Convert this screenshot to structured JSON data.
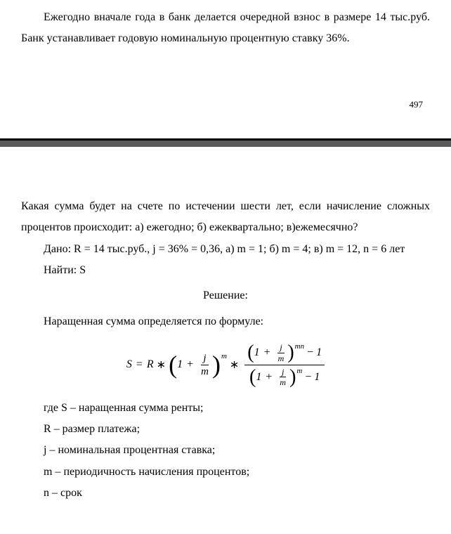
{
  "top": {
    "p1": "Ежегодно вначале года в банк делается очередной взнос в размере 14 тыс.руб. Банк устанавливает годовую номинальную процентную ставку 36%.",
    "pageNum": "497"
  },
  "bottom": {
    "p1": "Какая сумма будет на счете по истечении шести лет, если начисление сложных процентов происходит: а) ежегодно; б) ежеквартально; в)ежемесячно?",
    "p2": "Дано: R = 14 тыс.руб.,  j = 36% = 0,36, а) m = 1; б) m = 4; в) m = 12, n = 6 лет",
    "p3": "Найти: S",
    "p4": "Решение:",
    "p5": "Наращенная сумма определяется по формуле:",
    "formula": {
      "S": "S",
      "R": "R",
      "j": "j",
      "m": "m",
      "mn": "mn",
      "one": "1",
      "eq": "=",
      "plus": "+",
      "minus": "−",
      "star": "∗"
    },
    "p6": "где S – наращенная сумма ренты;",
    "p7": "R – размер платежа;",
    "p8": "j – номинальная процентная ставка;",
    "p9": "m – периодичность начисления процентов;",
    "p10": "n – срок"
  }
}
